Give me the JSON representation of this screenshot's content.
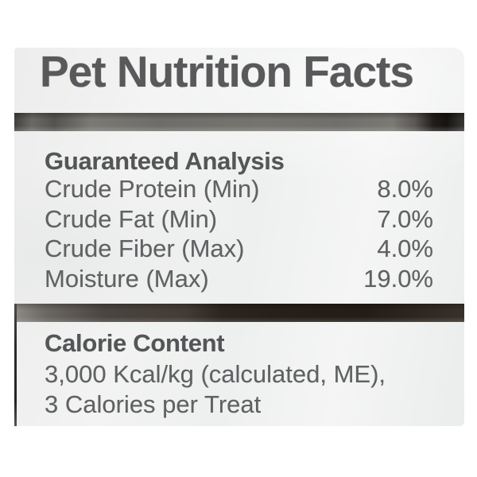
{
  "label": {
    "title": "Pet Nutrition Facts",
    "guaranteed_analysis": {
      "heading": "Guaranteed Analysis",
      "rows": [
        {
          "name": "Crude Protein (Min)",
          "value": "8.0%"
        },
        {
          "name": "Crude Fat (Min)",
          "value": "7.0%"
        },
        {
          "name": "Crude Fiber (Max)",
          "value": "4.0%"
        },
        {
          "name": "Moisture (Max)",
          "value": "19.0%"
        }
      ]
    },
    "calorie_content": {
      "heading": "Calorie Content",
      "lines": [
        "3,000 Kcal/kg (calculated, ME),",
        "3 Calories per Treat"
      ]
    }
  },
  "colors": {
    "label_background": "#eff0ef",
    "page_background": "#ffffff",
    "text": "#606163",
    "heading_text": "#545557",
    "divider_dark": "#241d16",
    "divider_gray": "#716f6b"
  }
}
